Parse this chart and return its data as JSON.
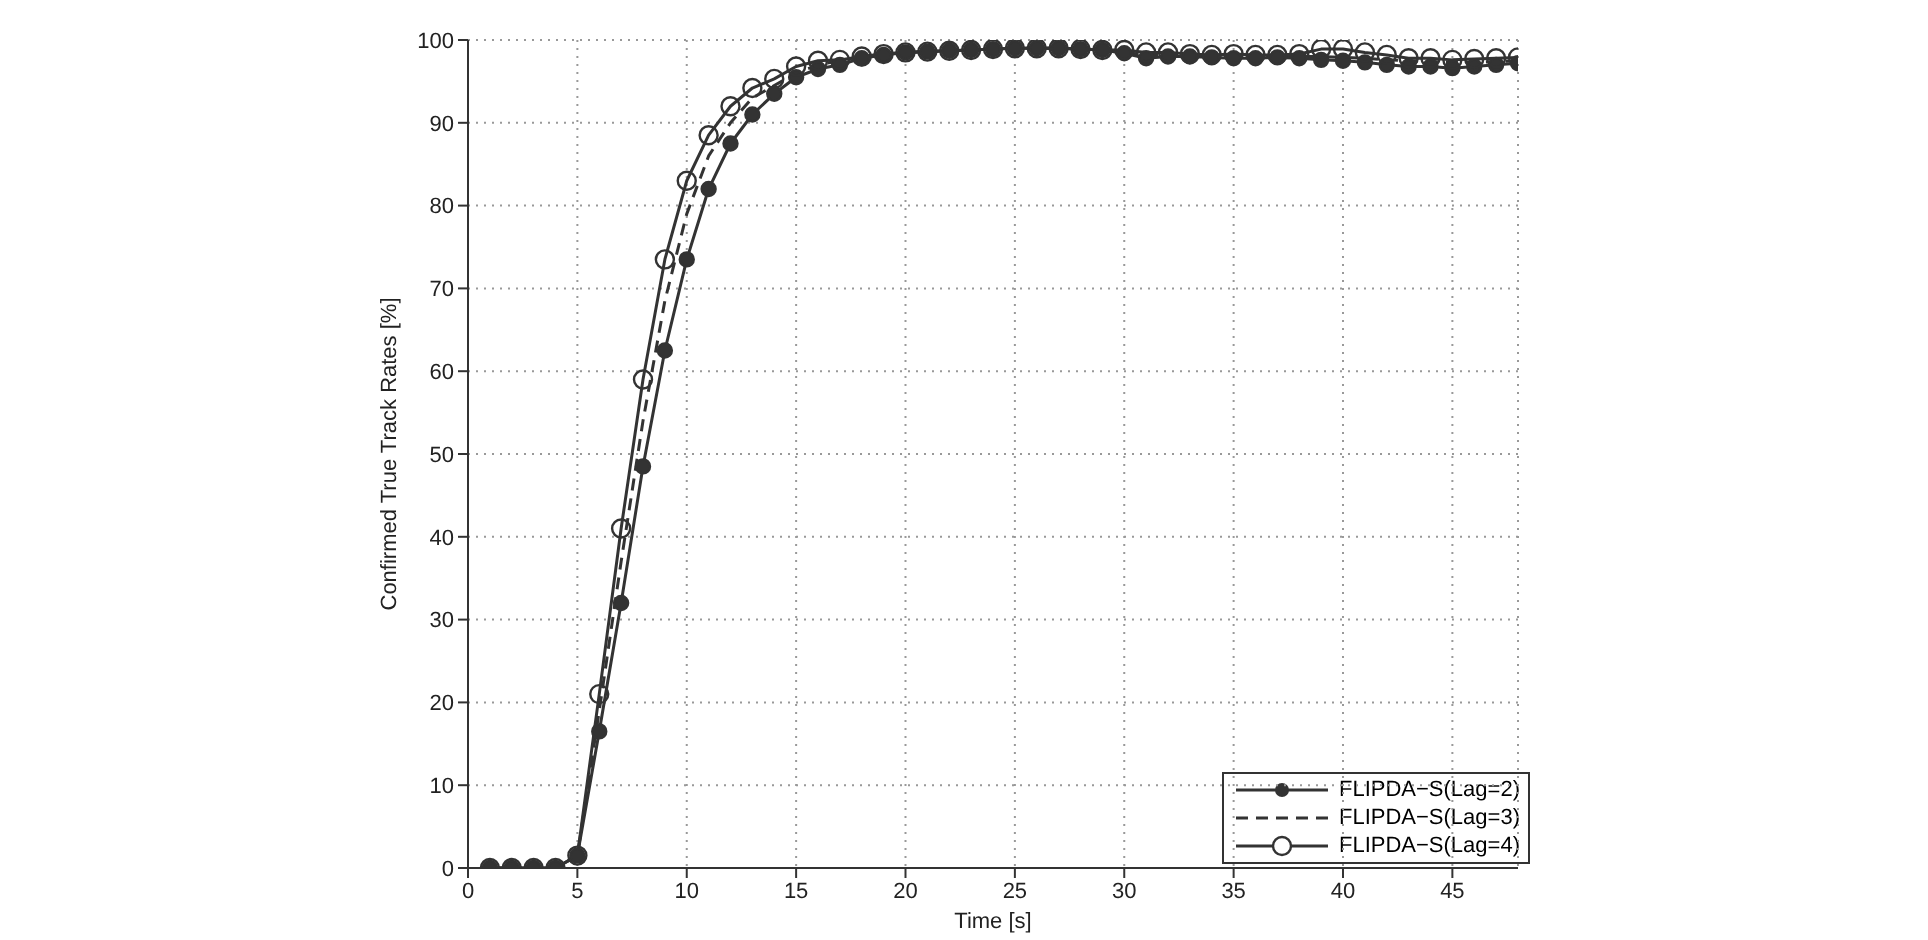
{
  "chart_data": {
    "type": "line",
    "xlabel": "Time [s]",
    "ylabel": "Confirmed True Track Rates [%]",
    "x": [
      1,
      2,
      3,
      4,
      5,
      6,
      7,
      8,
      9,
      10,
      11,
      12,
      13,
      14,
      15,
      16,
      17,
      18,
      19,
      20,
      21,
      22,
      23,
      24,
      25,
      26,
      27,
      28,
      29,
      30,
      31,
      32,
      33,
      34,
      35,
      36,
      37,
      38,
      39,
      40,
      41,
      42,
      43,
      44,
      45,
      46,
      47,
      48
    ],
    "series": [
      {
        "name": "FLIPDA−S(Lag=2)",
        "color": "#333333",
        "marker": "circle",
        "line_style": "solid",
        "values": [
          0,
          0,
          0,
          0,
          1.5,
          16.5,
          32,
          48.5,
          62.5,
          73.5,
          82,
          87.5,
          91,
          93.5,
          95.5,
          96.5,
          97,
          97.8,
          98.2,
          98.5,
          98.6,
          98.7,
          98.8,
          98.9,
          99,
          99,
          99,
          98.9,
          98.8,
          98.4,
          97.8,
          98,
          98,
          97.9,
          97.8,
          97.8,
          97.9,
          97.8,
          97.6,
          97.5,
          97.3,
          97,
          96.8,
          96.8,
          96.6,
          96.8,
          97,
          97.2
        ]
      },
      {
        "name": "FLIPDA−S(Lag=3)",
        "color": "#333333",
        "marker": "none",
        "line_style": "dashed",
        "values": [
          0,
          0,
          0,
          0,
          1.5,
          19,
          37,
          54,
          68.5,
          79,
          86,
          90,
          93,
          94.5,
          96,
          97,
          97.5,
          98,
          98.3,
          98.5,
          98.6,
          98.7,
          98.8,
          98.9,
          99,
          99,
          99,
          98.9,
          98.8,
          98.5,
          98.2,
          98.2,
          98.2,
          98.1,
          98,
          98,
          98,
          98,
          98,
          97.9,
          97.8,
          97.6,
          97.5,
          97.4,
          97.3,
          97.3,
          97.4,
          97.5
        ]
      },
      {
        "name": "FLIPDA−S(Lag=4)",
        "color": "#333333",
        "marker": "circle_open",
        "line_style": "solid",
        "values": [
          0,
          0,
          0,
          0,
          1.5,
          21,
          41,
          59,
          73.5,
          83,
          88.5,
          92,
          94.2,
          95.3,
          96.8,
          97.5,
          97.6,
          98,
          98.3,
          98.5,
          98.6,
          98.7,
          98.8,
          98.9,
          99,
          99,
          99,
          98.9,
          98.8,
          98.8,
          98.5,
          98.5,
          98.3,
          98.2,
          98.3,
          98.2,
          98.2,
          98.3,
          98.9,
          98.9,
          98.5,
          98.2,
          97.8,
          97.8,
          97.6,
          97.7,
          97.8,
          97.9
        ]
      }
    ],
    "xlim": [
      0,
      48
    ],
    "xticks": [
      0,
      5,
      10,
      15,
      20,
      25,
      30,
      35,
      40,
      45
    ],
    "ylim": [
      0,
      100
    ],
    "yticks": [
      0,
      10,
      20,
      30,
      40,
      50,
      60,
      70,
      80,
      90,
      100
    ],
    "grid": true,
    "legend": "bottom right"
  }
}
